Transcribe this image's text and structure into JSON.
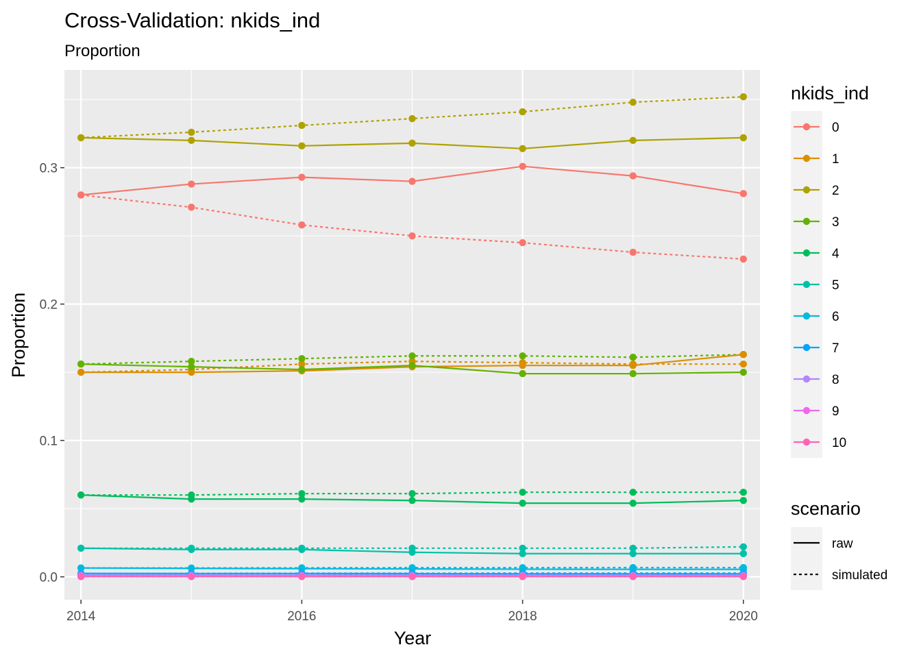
{
  "chart_data": {
    "type": "line",
    "title": "Cross-Validation: nkids_ind",
    "subtitle": "Proportion",
    "xlabel": "Year",
    "ylabel": "Proportion",
    "x": [
      2014,
      2015,
      2016,
      2017,
      2018,
      2019,
      2020
    ],
    "xlim": [
      2013.85,
      2020.15
    ],
    "ylim": [
      -0.0168,
      0.3717
    ],
    "x_ticks": [
      2014,
      2016,
      2018,
      2020
    ],
    "x_tick_labels": [
      "2014",
      "2016",
      "2018",
      "2020"
    ],
    "y_ticks": [
      0.0,
      0.1,
      0.2,
      0.3
    ],
    "y_tick_labels": [
      "0.0",
      "0.1",
      "0.2",
      "0.3"
    ],
    "grid": true,
    "panel_background": "#EBEBEB",
    "legend_placement": "right",
    "color_legend": {
      "title": "nkids_ind",
      "entries": [
        {
          "label": "0",
          "color": "#F8766D"
        },
        {
          "label": "1",
          "color": "#DB8E00"
        },
        {
          "label": "2",
          "color": "#AEA200"
        },
        {
          "label": "3",
          "color": "#64B200"
        },
        {
          "label": "4",
          "color": "#00BD5C"
        },
        {
          "label": "5",
          "color": "#00C1A7"
        },
        {
          "label": "6",
          "color": "#00BADE"
        },
        {
          "label": "7",
          "color": "#00A6FF"
        },
        {
          "label": "8",
          "color": "#B385FF"
        },
        {
          "label": "9",
          "color": "#EF67EB"
        },
        {
          "label": "10",
          "color": "#FF63B6"
        }
      ]
    },
    "linetype_legend": {
      "title": "scenario",
      "entries": [
        {
          "label": "raw",
          "dash": "solid"
        },
        {
          "label": "simulated",
          "dash": "dotted"
        }
      ]
    },
    "series": [
      {
        "group": "0",
        "scenario": "raw",
        "values": [
          0.28,
          0.288,
          0.293,
          0.29,
          0.301,
          0.294,
          0.281
        ]
      },
      {
        "group": "0",
        "scenario": "simulated",
        "values": [
          0.28,
          0.271,
          0.258,
          0.25,
          0.245,
          0.238,
          0.233
        ]
      },
      {
        "group": "1",
        "scenario": "raw",
        "values": [
          0.15,
          0.15,
          0.151,
          0.154,
          0.155,
          0.155,
          0.163
        ]
      },
      {
        "group": "1",
        "scenario": "simulated",
        "values": [
          0.15,
          0.152,
          0.156,
          0.158,
          0.157,
          0.156,
          0.156
        ]
      },
      {
        "group": "2",
        "scenario": "raw",
        "values": [
          0.322,
          0.32,
          0.316,
          0.318,
          0.314,
          0.32,
          0.322
        ]
      },
      {
        "group": "2",
        "scenario": "simulated",
        "values": [
          0.322,
          0.326,
          0.331,
          0.336,
          0.341,
          0.348,
          0.352
        ]
      },
      {
        "group": "3",
        "scenario": "raw",
        "values": [
          0.156,
          0.154,
          0.152,
          0.155,
          0.149,
          0.149,
          0.15
        ]
      },
      {
        "group": "3",
        "scenario": "simulated",
        "values": [
          0.156,
          0.158,
          0.16,
          0.162,
          0.162,
          0.161,
          0.163
        ]
      },
      {
        "group": "4",
        "scenario": "raw",
        "values": [
          0.06,
          0.057,
          0.057,
          0.056,
          0.054,
          0.054,
          0.056
        ]
      },
      {
        "group": "4",
        "scenario": "simulated",
        "values": [
          0.06,
          0.06,
          0.061,
          0.061,
          0.062,
          0.062,
          0.062
        ]
      },
      {
        "group": "5",
        "scenario": "raw",
        "values": [
          0.021,
          0.02,
          0.02,
          0.018,
          0.017,
          0.017,
          0.017
        ]
      },
      {
        "group": "5",
        "scenario": "simulated",
        "values": [
          0.021,
          0.021,
          0.021,
          0.021,
          0.021,
          0.021,
          0.022
        ]
      },
      {
        "group": "6",
        "scenario": "raw",
        "values": [
          0.0065,
          0.0062,
          0.006,
          0.0058,
          0.0056,
          0.0055,
          0.0055
        ]
      },
      {
        "group": "6",
        "scenario": "simulated",
        "values": [
          0.0065,
          0.0065,
          0.0066,
          0.0067,
          0.0067,
          0.0068,
          0.0068
        ]
      },
      {
        "group": "7",
        "scenario": "raw",
        "values": [
          0.0025,
          0.0024,
          0.0024,
          0.0023,
          0.0022,
          0.0022,
          0.0022
        ]
      },
      {
        "group": "7",
        "scenario": "simulated",
        "values": [
          0.0025,
          0.0025,
          0.0026,
          0.0026,
          0.0027,
          0.0027,
          0.0027
        ]
      },
      {
        "group": "8",
        "scenario": "raw",
        "values": [
          0.0012,
          0.0012,
          0.0011,
          0.0011,
          0.0011,
          0.0011,
          0.0011
        ]
      },
      {
        "group": "8",
        "scenario": "simulated",
        "values": [
          0.0012,
          0.0012,
          0.0012,
          0.0013,
          0.0013,
          0.0013,
          0.0013
        ]
      },
      {
        "group": "9",
        "scenario": "raw",
        "values": [
          0.0005,
          0.0005,
          0.0005,
          0.0005,
          0.0005,
          0.0005,
          0.0005
        ]
      },
      {
        "group": "9",
        "scenario": "simulated",
        "values": [
          0.0005,
          0.0005,
          0.0005,
          0.0006,
          0.0006,
          0.0006,
          0.0006
        ]
      },
      {
        "group": "10",
        "scenario": "raw",
        "values": [
          0.0002,
          0.0002,
          0.0002,
          0.0002,
          0.0002,
          0.0002,
          0.0002
        ]
      },
      {
        "group": "10",
        "scenario": "simulated",
        "values": [
          0.0002,
          0.0002,
          0.0002,
          0.0002,
          0.0002,
          0.0002,
          0.0002
        ]
      }
    ]
  }
}
